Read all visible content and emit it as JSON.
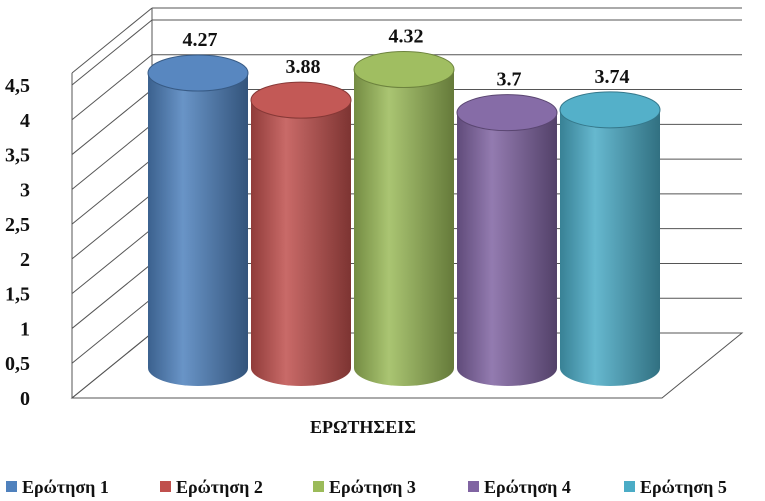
{
  "chart_data": {
    "type": "bar",
    "style": "3d-cylinder",
    "xlabel": "ΕΡΩΤΗΣΕΙΣ",
    "ylabel": "",
    "ylim": [
      0,
      4.5
    ],
    "yticks": [
      "0",
      "0,5",
      "1",
      "1,5",
      "2",
      "2,5",
      "3",
      "3,5",
      "4",
      "4,5"
    ],
    "grid": true,
    "legend_position": "bottom",
    "series": [
      {
        "name": "Ερώτηση 1",
        "value": 4.27,
        "label": "4.27",
        "color": "#4f81bd"
      },
      {
        "name": "Ερώτηση 2",
        "value": 3.88,
        "label": "3.88",
        "color": "#c0504d"
      },
      {
        "name": "Ερώτηση 3",
        "value": 4.32,
        "label": "4.32",
        "color": "#9bbb59"
      },
      {
        "name": "Ερώτηση 4",
        "value": 3.7,
        "label": "3.7",
        "color": "#8064a2"
      },
      {
        "name": "Ερώτηση 5",
        "value": 3.74,
        "label": "3.74",
        "color": "#4bacc6"
      }
    ]
  }
}
